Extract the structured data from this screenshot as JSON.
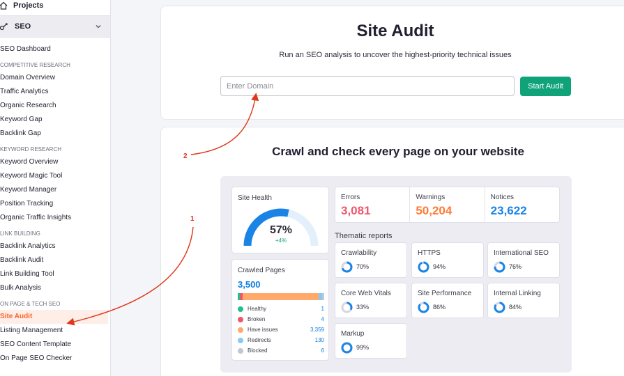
{
  "sidebar": {
    "projects_label": "Projects",
    "seo_label": "SEO",
    "dashboard": "SEO Dashboard",
    "sections": [
      {
        "heading": "COMPETITIVE RESEARCH",
        "items": [
          "Domain Overview",
          "Traffic Analytics",
          "Organic Research",
          "Keyword Gap",
          "Backlink Gap"
        ]
      },
      {
        "heading": "KEYWORD RESEARCH",
        "items": [
          "Keyword Overview",
          "Keyword Magic Tool",
          "Keyword Manager",
          "Position Tracking",
          "Organic Traffic Insights"
        ]
      },
      {
        "heading": "LINK BUILDING",
        "items": [
          "Backlink Analytics",
          "Backlink Audit",
          "Link Building Tool",
          "Bulk Analysis"
        ]
      },
      {
        "heading": "ON PAGE & TECH SEO",
        "items": [
          "Site Audit",
          "Listing Management",
          "SEO Content Template",
          "On Page SEO Checker"
        ]
      }
    ]
  },
  "audit": {
    "title": "Site Audit",
    "subtitle": "Run an SEO analysis to uncover the highest-priority technical issues",
    "placeholder": "Enter Domain",
    "button": "Start Audit"
  },
  "crawl": {
    "heading": "Crawl and check every page on your website",
    "site_health": {
      "label": "Site Health",
      "value": "57%",
      "delta": "+4%",
      "percent": 57
    },
    "crawled": {
      "label": "Crawled Pages",
      "total": "3,500",
      "rows": [
        {
          "name": "Healthy",
          "count": "1",
          "color": "#22c08a",
          "value": 1
        },
        {
          "name": "Broken",
          "count": "4",
          "color": "#f0566a",
          "value": 4
        },
        {
          "name": "Have issues",
          "count": "3,359",
          "color": "#ffa96b",
          "value": 3359
        },
        {
          "name": "Redirects",
          "count": "130",
          "color": "#86c9f5",
          "value": 130
        },
        {
          "name": "Blocked",
          "count": "6",
          "color": "#c4c5cf",
          "value": 6
        }
      ]
    },
    "stats": [
      {
        "label": "Errors",
        "value": "3,081",
        "color": "#f0566a"
      },
      {
        "label": "Warnings",
        "value": "50,204",
        "color": "#ff7a33"
      },
      {
        "label": "Notices",
        "value": "23,622",
        "color": "#1a84e6"
      }
    ],
    "thematic_title": "Thematic reports",
    "tiles": [
      {
        "label": "Crawlability",
        "pct": "70%",
        "value": 70
      },
      {
        "label": "HTTPS",
        "pct": "94%",
        "value": 94
      },
      {
        "label": "International SEO",
        "pct": "76%",
        "value": 76
      },
      {
        "label": "Core Web Vitals",
        "pct": "33%",
        "value": 33
      },
      {
        "label": "Site Performance",
        "pct": "86%",
        "value": 86
      },
      {
        "label": "Internal Linking",
        "pct": "84%",
        "value": 84
      },
      {
        "label": "Markup",
        "pct": "99%",
        "value": 99
      }
    ]
  },
  "annotations": {
    "one": "1",
    "two": "2"
  },
  "colors": {
    "accent": "#10a37a",
    "active": "#ff642d",
    "annotation": "#e0361b",
    "ring": "#0a7cde"
  }
}
